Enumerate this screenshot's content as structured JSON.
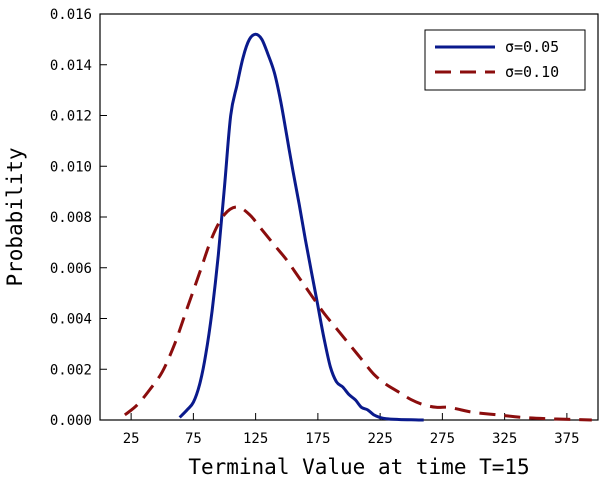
{
  "chart_data": {
    "type": "line",
    "title": "",
    "xlabel": "Terminal Value at time T=15",
    "ylabel": "Probability",
    "xlim": [
      0,
      400
    ],
    "ylim": [
      0,
      0.016
    ],
    "x_ticks": [
      25,
      75,
      125,
      175,
      225,
      275,
      325,
      375
    ],
    "x_tick_labels": [
      "25",
      "75",
      "125",
      "175",
      "225",
      "275",
      "325",
      "375"
    ],
    "y_ticks": [
      0,
      0.002,
      0.004,
      0.006,
      0.008,
      0.01,
      0.012,
      0.014,
      0.016
    ],
    "y_tick_labels": [
      "0.000",
      "0.002",
      "0.004",
      "0.006",
      "0.008",
      "0.010",
      "0.012",
      "0.014",
      "0.016"
    ],
    "grid": false,
    "legend_position": "top-right",
    "series": [
      {
        "name": "σ=0.05",
        "color": "#0a1a8c",
        "dash": "solid",
        "x": [
          64,
          70,
          75,
          80,
          85,
          90,
          95,
          100,
          105,
          110,
          115,
          120,
          125,
          130,
          135,
          140,
          145,
          150,
          155,
          160,
          165,
          170,
          175,
          180,
          185,
          190,
          195,
          200,
          205,
          210,
          215,
          220,
          225,
          230,
          240,
          250,
          260
        ],
        "y": [
          0.0001,
          0.0004,
          0.0007,
          0.0014,
          0.0026,
          0.0043,
          0.0065,
          0.0092,
          0.012,
          0.0132,
          0.0143,
          0.015,
          0.0152,
          0.015,
          0.0144,
          0.0137,
          0.0126,
          0.0112,
          0.0098,
          0.0085,
          0.0071,
          0.0058,
          0.0045,
          0.0032,
          0.0021,
          0.0015,
          0.0013,
          0.001,
          0.0008,
          0.0005,
          0.0004,
          0.0002,
          0.0001,
          5e-05,
          2e-05,
          1e-05,
          0.0
        ]
      },
      {
        "name": "σ=0.10",
        "color": "#8b0d0d",
        "dash": "dashed",
        "x": [
          20,
          30,
          40,
          50,
          60,
          70,
          80,
          90,
          100,
          110,
          120,
          130,
          140,
          150,
          160,
          170,
          180,
          190,
          200,
          210,
          220,
          230,
          240,
          250,
          260,
          270,
          280,
          290,
          300,
          320,
          340,
          360,
          380,
          395
        ],
        "y": [
          0.0002,
          0.0006,
          0.0012,
          0.0019,
          0.003,
          0.0044,
          0.0058,
          0.0072,
          0.0081,
          0.0084,
          0.0081,
          0.0075,
          0.0069,
          0.0063,
          0.0056,
          0.0049,
          0.0042,
          0.0036,
          0.003,
          0.0024,
          0.0018,
          0.0014,
          0.0011,
          0.0008,
          0.0006,
          0.0005,
          0.0005,
          0.0004,
          0.0003,
          0.0002,
          0.0001,
          5e-05,
          2e-05,
          0.0
        ]
      }
    ]
  }
}
